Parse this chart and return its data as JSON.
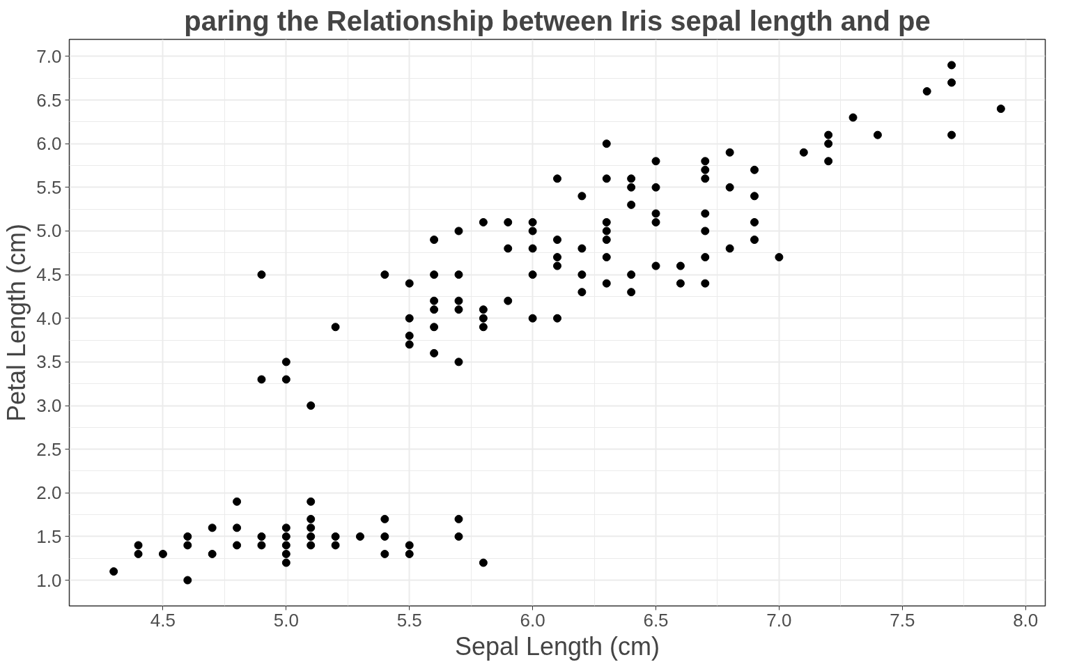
{
  "chart_data": {
    "type": "scatter",
    "title": "paring the Relationship between Iris sepal length and pe",
    "xlabel": "Sepal Length (cm)",
    "ylabel": "Petal Length (cm)",
    "x": [
      4.3,
      4.4,
      4.4,
      4.5,
      4.6,
      4.6,
      4.6,
      4.7,
      4.7,
      4.8,
      4.8,
      4.8,
      4.9,
      4.9,
      4.9,
      4.9,
      5.0,
      5.0,
      5.0,
      5.0,
      5.0,
      5.0,
      5.0,
      5.1,
      5.1,
      5.1,
      5.1,
      5.1,
      5.1,
      5.2,
      5.2,
      5.2,
      5.3,
      5.4,
      5.4,
      5.4,
      5.4,
      5.5,
      5.5,
      5.5,
      5.5,
      5.5,
      5.5,
      5.6,
      5.6,
      5.6,
      5.6,
      5.6,
      5.6,
      5.7,
      5.7,
      5.7,
      5.7,
      5.7,
      5.7,
      5.7,
      5.8,
      5.8,
      5.8,
      5.8,
      5.8,
      5.9,
      5.9,
      5.9,
      6.0,
      6.0,
      6.0,
      6.0,
      6.0,
      6.1,
      6.1,
      6.1,
      6.1,
      6.1,
      6.2,
      6.2,
      6.2,
      6.2,
      6.3,
      6.3,
      6.3,
      6.3,
      6.3,
      6.3,
      6.3,
      6.4,
      6.4,
      6.4,
      6.4,
      6.4,
      6.5,
      6.5,
      6.5,
      6.5,
      6.5,
      6.6,
      6.6,
      6.7,
      6.7,
      6.7,
      6.7,
      6.7,
      6.7,
      6.7,
      6.8,
      6.8,
      6.8,
      6.9,
      6.9,
      6.9,
      6.9,
      7.0,
      7.1,
      7.2,
      7.2,
      7.2,
      7.3,
      7.4,
      7.6,
      7.7,
      7.7,
      7.7,
      7.9
    ],
    "values": [
      1.1,
      1.3,
      1.4,
      1.3,
      1.0,
      1.4,
      1.5,
      1.3,
      1.6,
      1.4,
      1.6,
      1.9,
      1.4,
      1.5,
      3.3,
      4.5,
      1.2,
      1.3,
      1.4,
      1.5,
      1.6,
      3.3,
      3.5,
      1.4,
      1.5,
      1.6,
      1.7,
      1.9,
      3.0,
      1.4,
      1.5,
      3.9,
      1.5,
      1.3,
      1.5,
      1.7,
      4.5,
      1.3,
      1.4,
      3.7,
      3.8,
      4.0,
      4.4,
      3.6,
      3.9,
      4.1,
      4.2,
      4.5,
      4.9,
      1.5,
      1.7,
      3.5,
      4.1,
      4.2,
      4.5,
      5.0,
      1.2,
      3.9,
      4.0,
      4.1,
      5.1,
      4.2,
      4.8,
      5.1,
      4.0,
      4.5,
      4.8,
      5.0,
      5.1,
      4.0,
      4.6,
      4.7,
      4.9,
      5.6,
      4.3,
      4.5,
      4.8,
      5.4,
      4.4,
      4.7,
      4.9,
      5.0,
      5.1,
      5.6,
      6.0,
      4.3,
      4.5,
      5.3,
      5.5,
      5.6,
      4.6,
      5.1,
      5.2,
      5.5,
      5.8,
      4.4,
      4.6,
      4.4,
      4.7,
      5.0,
      5.2,
      5.6,
      5.7,
      5.8,
      4.8,
      5.5,
      5.9,
      4.9,
      5.1,
      5.4,
      5.7,
      4.7,
      5.9,
      5.8,
      6.0,
      6.1,
      6.3,
      6.1,
      6.6,
      6.1,
      6.7,
      6.9,
      6.4
    ],
    "color": "#000000",
    "marker": "circle",
    "xlim": [
      4.12,
      8.08
    ],
    "ylim": [
      0.705,
      7.195
    ],
    "xticks": [
      4.5,
      {
        "value": 5,
        "label": "5.0"
      },
      5.5,
      {
        "value": 6,
        "label": "6.0"
      },
      6.5,
      {
        "value": 7,
        "label": "7.0"
      },
      7.5,
      {
        "value": 8,
        "label": "8.0"
      }
    ],
    "yticks": [
      {
        "value": 1,
        "label": "1.0"
      },
      1.5,
      {
        "value": 2,
        "label": "2.0"
      },
      2.5,
      {
        "value": 3,
        "label": "3.0"
      },
      3.5,
      {
        "value": 4,
        "label": "4.0"
      },
      4.5,
      {
        "value": 5,
        "label": "5.0"
      },
      5.5,
      {
        "value": 6,
        "label": "6.0"
      },
      6.5,
      {
        "value": 7,
        "label": "7.0"
      }
    ],
    "grid": true
  }
}
